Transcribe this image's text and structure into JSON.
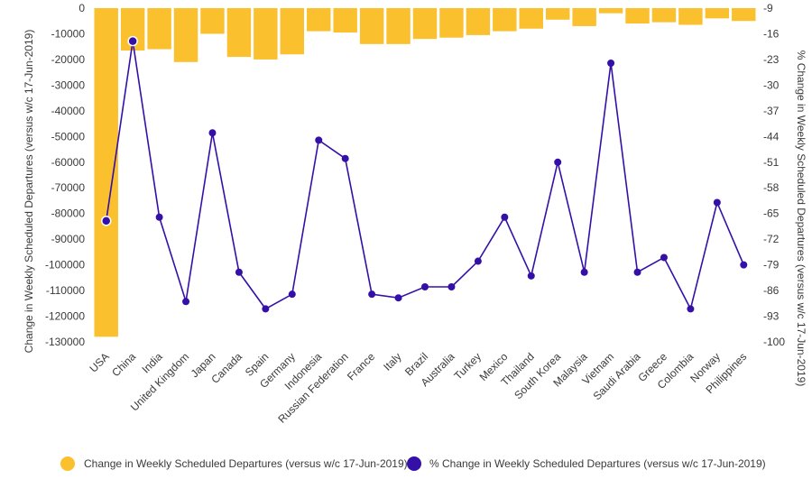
{
  "chart_data": {
    "type": "bar",
    "categories": [
      "USA",
      "China",
      "India",
      "United Kingdom",
      "Japan",
      "Canada",
      "Spain",
      "Germany",
      "Indonesia",
      "Russian Federation",
      "France",
      "Italy",
      "Brazil",
      "Australia",
      "Turkey",
      "Mexico",
      "Thailand",
      "South Korea",
      "Malaysia",
      "Vietnam",
      "Saudi Arabia",
      "Greece",
      "Colombia",
      "Norway",
      "Philippines"
    ],
    "series": [
      {
        "name": "Change in Weekly Scheduled Departures (versus w/c 17-Jun-2019)",
        "type": "bar",
        "axis": "left",
        "color": "#FBC02D",
        "values": [
          -128000,
          -16500,
          -16000,
          -21000,
          -10000,
          -19000,
          -20000,
          -18000,
          -9000,
          -9500,
          -14000,
          -14000,
          -12000,
          -11500,
          -10500,
          -9000,
          -8000,
          -4500,
          -7000,
          -2000,
          -6000,
          -5500,
          -6500,
          -4000,
          -5000
        ]
      },
      {
        "name": "% Change in Weekly Scheduled Departures (versus w/c 17-Jun-2019)",
        "type": "line",
        "axis": "right",
        "color": "#3410A8",
        "values": [
          -67,
          -18,
          -66,
          -89,
          -43,
          -81,
          -91,
          -87,
          -45,
          -50,
          -87,
          -88,
          -85,
          -85,
          -78,
          -66,
          -82,
          -51,
          -81,
          -24,
          -81,
          -77,
          -91,
          -62,
          -79
        ]
      }
    ],
    "y_left": {
      "label": "Change in Weekly Scheduled Departures (versus w/c 17-Jun-2019)",
      "min": -130000,
      "max": 0,
      "ticks": [
        "0",
        "-10000",
        "-20000",
        "-30000",
        "-40000",
        "-50000",
        "-60000",
        "-70000",
        "-80000",
        "-90000",
        "-100000",
        "-110000",
        "-120000",
        "-130000"
      ]
    },
    "y_right": {
      "label": "% Change in Weekly Scheduled Departures (versus w/c 17-Jun-2019)",
      "min": -100,
      "max": -9,
      "ticks": [
        "-9",
        "-16",
        "-23",
        "-30",
        "-37",
        "-44",
        "-51",
        "-58",
        "-65",
        "-72",
        "-79",
        "-86",
        "-93",
        "-100"
      ]
    },
    "grid": false,
    "legend_position": "bottom"
  }
}
